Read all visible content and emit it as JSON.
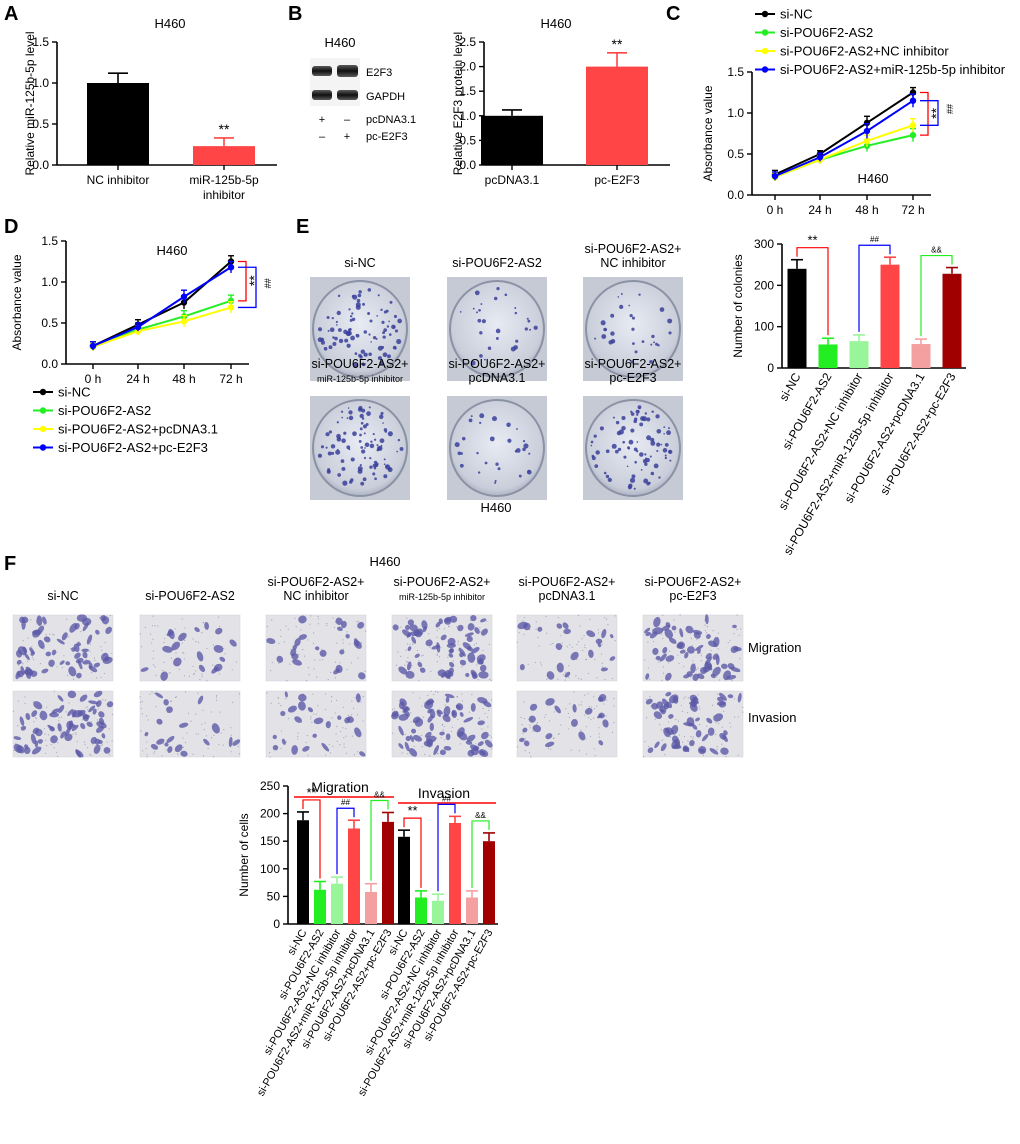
{
  "cell_line": "H460",
  "colors": {
    "black": "#000000",
    "green": "#22ee22",
    "light_green": "#99f599",
    "yellow": "#ffff00",
    "blue": "#0000ff",
    "red": "#ff4545",
    "pink": "#f5a0a0",
    "dark_red": "#a00000",
    "brace_red": "#ff0000"
  },
  "panels": {
    "A": {
      "letter": "A"
    },
    "B": {
      "letter": "B",
      "blot_bands": [
        "E2F3",
        "GAPDH"
      ],
      "blot_rows": [
        {
          "s1": "+",
          "s2": "–",
          "label": "pcDNA3.1"
        },
        {
          "s1": "–",
          "s2": "+",
          "label": "pc-E2F3"
        }
      ]
    },
    "C": {
      "letter": "C"
    },
    "D": {
      "letter": "D"
    },
    "E": {
      "letter": "E",
      "dish_labels": [
        [
          "si-NC"
        ],
        [
          "si-POU6F2-AS2"
        ],
        [
          "si-POU6F2-AS2+",
          "NC inhibitor"
        ],
        [
          "si-POU6F2-AS2+",
          "miR-125b-5p inhibitor"
        ],
        [
          "si-POU6F2-AS2+",
          "pcDNA3.1"
        ],
        [
          "si-POU6F2-AS2+",
          "pc-E2F3"
        ]
      ]
    },
    "F": {
      "letter": "F",
      "image_labels": [
        [
          "si-NC"
        ],
        [
          "si-POU6F2-AS2"
        ],
        [
          "si-POU6F2-AS2+",
          "NC inhibitor"
        ],
        [
          "si-POU6F2-AS2+",
          "miR-125b-5p inhibitor"
        ],
        [
          "si-POU6F2-AS2+",
          "pcDNA3.1"
        ],
        [
          "si-POU6F2-AS2+",
          "pc-E2F3"
        ]
      ],
      "row_labels": [
        "Migration",
        "Invasion"
      ]
    }
  },
  "chart_data": [
    {
      "id": "A",
      "type": "bar",
      "title": "H460",
      "xlabel": "",
      "ylabel": "Relative miR-125b-5p level",
      "ylim": [
        0,
        1.5
      ],
      "yticks": [
        0.0,
        0.5,
        1.0,
        1.5
      ],
      "categories": [
        [
          "NC inhibitor"
        ],
        [
          "miR-125b-5p",
          "inhibitor"
        ]
      ],
      "values": [
        1.0,
        0.23
      ],
      "errors": [
        0.12,
        0.1
      ],
      "colors": [
        "#000000",
        "#ff4545"
      ],
      "annotations": [
        {
          "index": 1,
          "text": "**"
        }
      ]
    },
    {
      "id": "B",
      "type": "bar",
      "title": "H460",
      "xlabel": "",
      "ylabel": "Relative E2F3 protein level",
      "ylim": [
        0,
        2.5
      ],
      "yticks": [
        0.0,
        0.5,
        1.0,
        1.5,
        2.0,
        2.5
      ],
      "categories": [
        [
          "pcDNA3.1"
        ],
        [
          "pc-E2F3"
        ]
      ],
      "values": [
        1.0,
        2.0
      ],
      "errors": [
        0.12,
        0.28
      ],
      "colors": [
        "#000000",
        "#ff4545"
      ],
      "annotations": [
        {
          "index": 1,
          "text": "**"
        }
      ]
    },
    {
      "id": "C",
      "type": "line",
      "title": "H460",
      "xlabel": "",
      "ylabel": "Absorbance value",
      "x": [
        "0 h",
        "24 h",
        "48 h",
        "72 h"
      ],
      "ylim": [
        0,
        1.5
      ],
      "yticks": [
        0.0,
        0.5,
        1.0,
        1.5
      ],
      "series": [
        {
          "name": "si-NC",
          "color": "#000000",
          "values": [
            0.25,
            0.5,
            0.88,
            1.25
          ],
          "errors": [
            0.05,
            0.04,
            0.08,
            0.06
          ]
        },
        {
          "name": "si-POU6F2-AS2",
          "color": "#22ee22",
          "values": [
            0.22,
            0.43,
            0.6,
            0.73
          ],
          "errors": [
            0.05,
            0.05,
            0.07,
            0.08
          ]
        },
        {
          "name": "si-POU6F2-AS2+NC inhibitor",
          "color": "#ffff00",
          "values": [
            0.22,
            0.43,
            0.66,
            0.85
          ],
          "errors": [
            0.05,
            0.05,
            0.07,
            0.08
          ]
        },
        {
          "name": "si-POU6F2-AS2+miR-125b-5p inhibitor",
          "color": "#0000ff",
          "values": [
            0.23,
            0.46,
            0.78,
            1.15
          ],
          "errors": [
            0.05,
            0.05,
            0.09,
            0.08
          ]
        }
      ],
      "annotations": [
        "**",
        "##"
      ]
    },
    {
      "id": "D",
      "type": "line",
      "title": "H460",
      "xlabel": "",
      "ylabel": "Absorbance value",
      "x": [
        "0 h",
        "24 h",
        "48 h",
        "72 h"
      ],
      "ylim": [
        0,
        1.5
      ],
      "yticks": [
        0.0,
        0.5,
        1.0,
        1.5
      ],
      "series": [
        {
          "name": "si-NC",
          "color": "#000000",
          "values": [
            0.22,
            0.48,
            0.75,
            1.25
          ],
          "errors": [
            0.05,
            0.06,
            0.08,
            0.07
          ]
        },
        {
          "name": "si-POU6F2-AS2",
          "color": "#22ee22",
          "values": [
            0.21,
            0.42,
            0.58,
            0.77
          ],
          "errors": [
            0.05,
            0.05,
            0.07,
            0.07
          ]
        },
        {
          "name": "si-POU6F2-AS2+pcDNA3.1",
          "color": "#ffff00",
          "values": [
            0.21,
            0.4,
            0.52,
            0.69
          ],
          "errors": [
            0.05,
            0.05,
            0.07,
            0.07
          ]
        },
        {
          "name": "si-POU6F2-AS2+pc-E2F3",
          "color": "#0000ff",
          "values": [
            0.22,
            0.45,
            0.82,
            1.18
          ],
          "errors": [
            0.05,
            0.05,
            0.08,
            0.07
          ]
        }
      ],
      "annotations": [
        "**",
        "##"
      ]
    },
    {
      "id": "E",
      "type": "bar",
      "title": "H460",
      "xlabel": "",
      "ylabel": "Number of colonies",
      "ylim": [
        0,
        300
      ],
      "yticks": [
        0,
        100,
        200,
        300
      ],
      "categories": [
        "si-NC",
        "si-POU6F2-AS2",
        "si-POU6F2-AS2+NC inhibitor",
        "si-POU6F2-AS2+miR-125b-5p inhibitor",
        "si-POU6F2-AS2+pcDNA3.1",
        "si-POU6F2-AS2+pc-E2F3"
      ],
      "values": [
        240,
        57,
        65,
        250,
        58,
        228
      ],
      "errors": [
        22,
        15,
        15,
        18,
        12,
        15
      ],
      "colors": [
        "#000000",
        "#22ee22",
        "#99f599",
        "#ff4545",
        "#f5a0a0",
        "#a00000"
      ],
      "annotations": [
        "**",
        "##",
        "&&"
      ]
    },
    {
      "id": "F",
      "type": "bar",
      "title": "H460",
      "xlabel": "",
      "ylabel": "Number of cells",
      "ylim": [
        0,
        250
      ],
      "yticks": [
        0,
        50,
        100,
        150,
        200,
        250
      ],
      "groups": [
        "Migration",
        "Invasion"
      ],
      "categories": [
        "si-NC",
        "si-POU6F2-AS2",
        "si-POU6F2-AS2+NC inhibitor",
        "si-POU6F2-AS2+miR-125b-5p inhibitor",
        "si-POU6F2-AS2+pcDNA3.1",
        "si-POU6F2-AS2+pc-E2F3"
      ],
      "series": [
        {
          "group": "Migration",
          "values": [
            188,
            62,
            73,
            173,
            58,
            185
          ],
          "errors": [
            15,
            15,
            12,
            15,
            15,
            17
          ]
        },
        {
          "group": "Invasion",
          "values": [
            158,
            48,
            42,
            183,
            48,
            150
          ],
          "errors": [
            12,
            12,
            12,
            12,
            12,
            15
          ]
        }
      ],
      "colors": [
        "#000000",
        "#22ee22",
        "#99f599",
        "#ff4545",
        "#f5a0a0",
        "#a00000"
      ],
      "annotations": [
        "**",
        "##",
        "&&"
      ]
    }
  ]
}
